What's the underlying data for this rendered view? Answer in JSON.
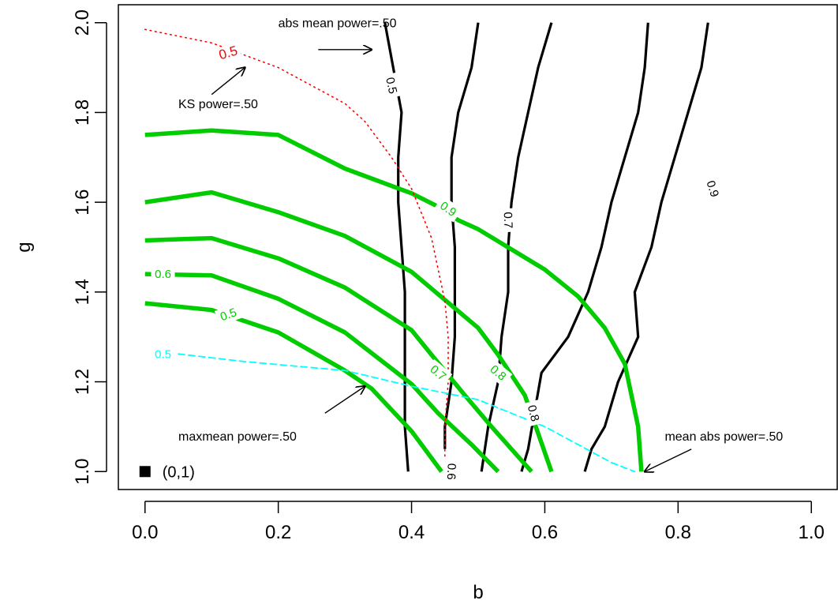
{
  "chart_data": {
    "type": "line",
    "title": "",
    "xlabel": "b",
    "ylabel": "g",
    "xlim": [
      -0.04,
      1.04
    ],
    "ylim": [
      0.96,
      2.04
    ],
    "xticks": [
      0.0,
      0.2,
      0.4,
      0.6,
      0.8,
      1.0
    ],
    "yticks": [
      1.0,
      1.2,
      1.4,
      1.6,
      1.8,
      2.0
    ],
    "xtick_labels": [
      "0.0",
      "0.2",
      "0.4",
      "0.6",
      "0.8",
      "1.0"
    ],
    "ytick_labels": [
      "1.0",
      "1.2",
      "1.4",
      "1.6",
      "1.8",
      "2.0"
    ],
    "grid": false,
    "colors": {
      "abs_mean": "#000000",
      "maxmean": "#00cc00",
      "ks": "#ff0000",
      "mean_abs": "#00ffff"
    },
    "contours": [
      {
        "group": "abs_mean",
        "level": "0.5",
        "label_at": [
          0.37,
          1.86
        ],
        "label_angle": 78,
        "points": [
          [
            0.395,
            1.0
          ],
          [
            0.39,
            1.1
          ],
          [
            0.39,
            1.2
          ],
          [
            0.39,
            1.3
          ],
          [
            0.39,
            1.4
          ],
          [
            0.385,
            1.5
          ],
          [
            0.38,
            1.6
          ],
          [
            0.38,
            1.7
          ],
          [
            0.385,
            1.8
          ],
          [
            0.37,
            1.92
          ],
          [
            0.36,
            2.0
          ]
        ]
      },
      {
        "group": "abs_mean",
        "level": "0.6",
        "label_at": [
          0.46,
          1.0
        ],
        "label_angle": 92,
        "points": [
          [
            0.45,
            1.05
          ],
          [
            0.45,
            1.1
          ],
          [
            0.46,
            1.2
          ],
          [
            0.465,
            1.3
          ],
          [
            0.465,
            1.4
          ],
          [
            0.465,
            1.5
          ],
          [
            0.46,
            1.6
          ],
          [
            0.46,
            1.7
          ],
          [
            0.47,
            1.8
          ],
          [
            0.49,
            1.9
          ],
          [
            0.5,
            2.0
          ]
        ]
      },
      {
        "group": "abs_mean",
        "level": "0.7",
        "label_at": [
          0.545,
          1.56
        ],
        "label_angle": 88,
        "points": [
          [
            0.505,
            1.0
          ],
          [
            0.515,
            1.1
          ],
          [
            0.53,
            1.2
          ],
          [
            0.535,
            1.3
          ],
          [
            0.545,
            1.4
          ],
          [
            0.545,
            1.5
          ],
          [
            0.55,
            1.6
          ],
          [
            0.56,
            1.7
          ],
          [
            0.575,
            1.8
          ],
          [
            0.59,
            1.9
          ],
          [
            0.61,
            2.0
          ]
        ]
      },
      {
        "group": "abs_mean",
        "level": "0.8",
        "label_at": [
          0.583,
          1.13
        ],
        "label_angle": 75,
        "points": [
          [
            0.565,
            1.0
          ],
          [
            0.575,
            1.05
          ],
          [
            0.595,
            1.22
          ],
          [
            0.635,
            1.3
          ],
          [
            0.665,
            1.4
          ],
          [
            0.685,
            1.5
          ],
          [
            0.7,
            1.6
          ],
          [
            0.72,
            1.7
          ],
          [
            0.74,
            1.8
          ],
          [
            0.75,
            1.9
          ],
          [
            0.755,
            2.0
          ]
        ]
      },
      {
        "group": "abs_mean",
        "level": "0.9",
        "label_at": [
          0.852,
          1.63
        ],
        "label_angle": 72,
        "points": [
          [
            0.66,
            1.0
          ],
          [
            0.67,
            1.05
          ],
          [
            0.69,
            1.1
          ],
          [
            0.71,
            1.2
          ],
          [
            0.74,
            1.3
          ],
          [
            0.735,
            1.4
          ],
          [
            0.76,
            1.5
          ],
          [
            0.775,
            1.6
          ],
          [
            0.795,
            1.7
          ],
          [
            0.815,
            1.8
          ],
          [
            0.835,
            1.9
          ],
          [
            0.845,
            2.0
          ]
        ]
      },
      {
        "group": "maxmean",
        "level": "0.5",
        "label_at": [
          0.125,
          1.35
        ],
        "label_angle": -20,
        "points": [
          [
            0.0,
            1.375
          ],
          [
            0.1,
            1.36
          ],
          [
            0.2,
            1.31
          ],
          [
            0.3,
            1.225
          ],
          [
            0.34,
            1.185
          ],
          [
            0.4,
            1.09
          ],
          [
            0.445,
            1.0
          ]
        ]
      },
      {
        "group": "maxmean",
        "level": "0.6",
        "label_at": [
          0.027,
          1.44
        ],
        "label_angle": 0,
        "points": [
          [
            0.0,
            1.44
          ],
          [
            0.1,
            1.437
          ],
          [
            0.2,
            1.385
          ],
          [
            0.3,
            1.31
          ],
          [
            0.4,
            1.195
          ],
          [
            0.44,
            1.13
          ],
          [
            0.49,
            1.06
          ],
          [
            0.53,
            1.0
          ]
        ]
      },
      {
        "group": "maxmean",
        "level": "0.7",
        "label_at": [
          0.44,
          1.22
        ],
        "label_angle": 40,
        "points": [
          [
            0.0,
            1.515
          ],
          [
            0.1,
            1.52
          ],
          [
            0.2,
            1.475
          ],
          [
            0.3,
            1.41
          ],
          [
            0.4,
            1.315
          ],
          [
            0.43,
            1.26
          ],
          [
            0.48,
            1.17
          ],
          [
            0.52,
            1.1
          ],
          [
            0.58,
            1.0
          ]
        ]
      },
      {
        "group": "maxmean",
        "level": "0.8",
        "label_at": [
          0.53,
          1.22
        ],
        "label_angle": 40,
        "points": [
          [
            0.0,
            1.6
          ],
          [
            0.1,
            1.622
          ],
          [
            0.2,
            1.578
          ],
          [
            0.3,
            1.525
          ],
          [
            0.4,
            1.445
          ],
          [
            0.5,
            1.32
          ],
          [
            0.53,
            1.26
          ],
          [
            0.57,
            1.17
          ],
          [
            0.61,
            1.0
          ]
        ]
      },
      {
        "group": "maxmean",
        "level": "0.9",
        "label_at": [
          0.455,
          1.585
        ],
        "label_angle": 35,
        "points": [
          [
            0.0,
            1.75
          ],
          [
            0.1,
            1.76
          ],
          [
            0.2,
            1.75
          ],
          [
            0.3,
            1.675
          ],
          [
            0.4,
            1.62
          ],
          [
            0.44,
            1.59
          ],
          [
            0.47,
            1.56
          ],
          [
            0.5,
            1.54
          ],
          [
            0.6,
            1.45
          ],
          [
            0.65,
            1.39
          ],
          [
            0.69,
            1.32
          ],
          [
            0.72,
            1.24
          ],
          [
            0.74,
            1.1
          ],
          [
            0.745,
            1.0
          ]
        ]
      },
      {
        "group": "ks",
        "level": "0.5",
        "label_at": [
          0.125,
          1.932
        ],
        "label_angle": -16,
        "points": [
          [
            0.0,
            1.985
          ],
          [
            0.1,
            1.955
          ],
          [
            0.2,
            1.9
          ],
          [
            0.3,
            1.82
          ],
          [
            0.33,
            1.78
          ],
          [
            0.37,
            1.7
          ],
          [
            0.4,
            1.63
          ],
          [
            0.43,
            1.52
          ],
          [
            0.44,
            1.45
          ],
          [
            0.45,
            1.38
          ],
          [
            0.455,
            1.3
          ],
          [
            0.455,
            1.2
          ],
          [
            0.45,
            1.1
          ],
          [
            0.45,
            1.0
          ]
        ]
      },
      {
        "group": "mean_abs",
        "level": "0.5",
        "label_at": [
          0.027,
          1.262
        ],
        "label_angle": 0,
        "points": [
          [
            0.05,
            1.262
          ],
          [
            0.15,
            1.245
          ],
          [
            0.3,
            1.225
          ],
          [
            0.4,
            1.19
          ],
          [
            0.5,
            1.16
          ],
          [
            0.55,
            1.13
          ],
          [
            0.6,
            1.1
          ],
          [
            0.65,
            1.06
          ],
          [
            0.7,
            1.02
          ],
          [
            0.735,
            1.0
          ]
        ]
      }
    ],
    "annotations": [
      {
        "text": "abs mean power=.50",
        "at": [
          0.2,
          2.0
        ],
        "arrow_from": [
          0.26,
          1.94
        ],
        "arrow_to": [
          0.34,
          1.94
        ]
      },
      {
        "text": "KS power=.50",
        "at": [
          0.05,
          1.82
        ],
        "arrow_from": [
          0.1,
          1.84
        ],
        "arrow_to": [
          0.15,
          1.9
        ]
      },
      {
        "text": "maxmean power=.50",
        "at": [
          0.05,
          1.08
        ],
        "arrow_from": [
          0.27,
          1.13
        ],
        "arrow_to": [
          0.33,
          1.19
        ]
      },
      {
        "text": "mean abs power=.50",
        "at": [
          0.78,
          1.08
        ],
        "arrow_from": [
          0.82,
          1.05
        ],
        "arrow_to": [
          0.75,
          1.0
        ]
      }
    ],
    "point": {
      "text": "(0,1)",
      "x": 0.0,
      "y": 1.0
    }
  }
}
